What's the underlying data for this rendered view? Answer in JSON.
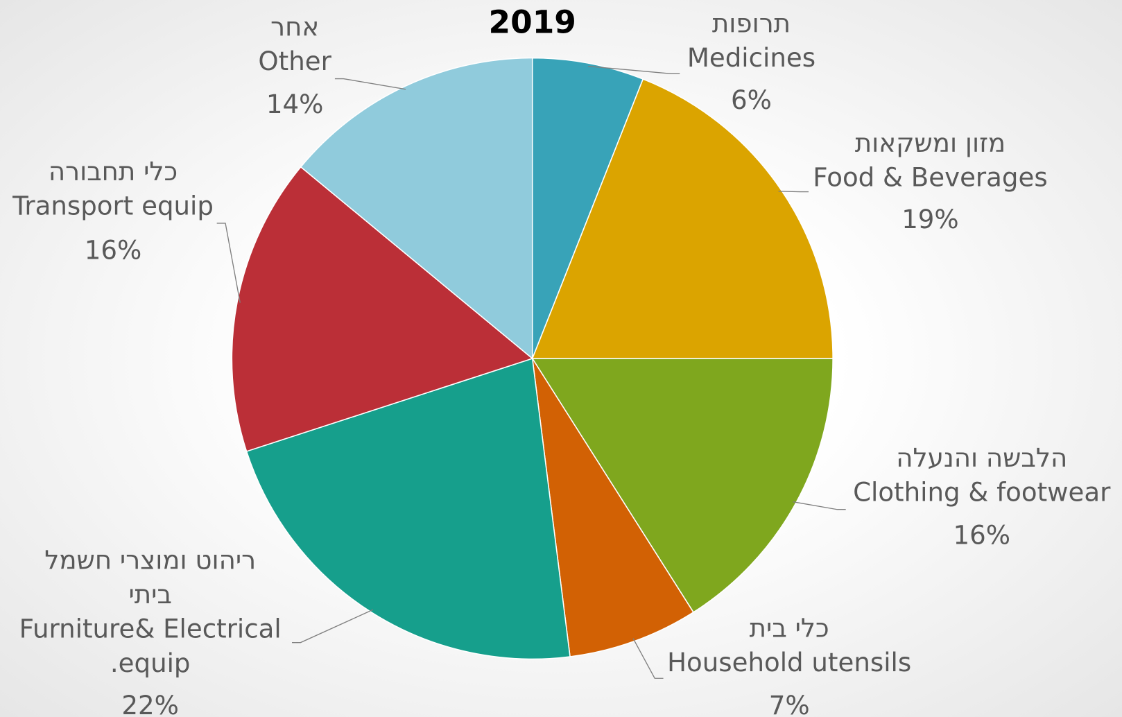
{
  "chart_data": {
    "type": "pie",
    "title": "2019",
    "categories": [
      [
        "תרופות",
        "Medicines"
      ],
      [
        "מזון ומשקאות",
        "Food & Beverages"
      ],
      [
        "הלבשה והנעלה",
        "Clothing & footwear"
      ],
      [
        "כלי בית",
        "Household utensils"
      ],
      [
        "ריהוט ומוצרי חשמל",
        "ביתי",
        "Furniture& Electrical",
        ".equip"
      ],
      [
        "כלי תחבורה",
        "Transport equip"
      ],
      [
        "אחר",
        "Other"
      ]
    ],
    "values": [
      6,
      19,
      16,
      7,
      22,
      16,
      14
    ],
    "value_labels": [
      "6%",
      "19%",
      "16%",
      "7%",
      "22%",
      "16%",
      "14%"
    ],
    "colors": [
      "#38a3b8",
      "#dba400",
      "#7fa71e",
      "#d26104",
      "#169f8c",
      "#bb2f37",
      "#90cbdc"
    ]
  }
}
